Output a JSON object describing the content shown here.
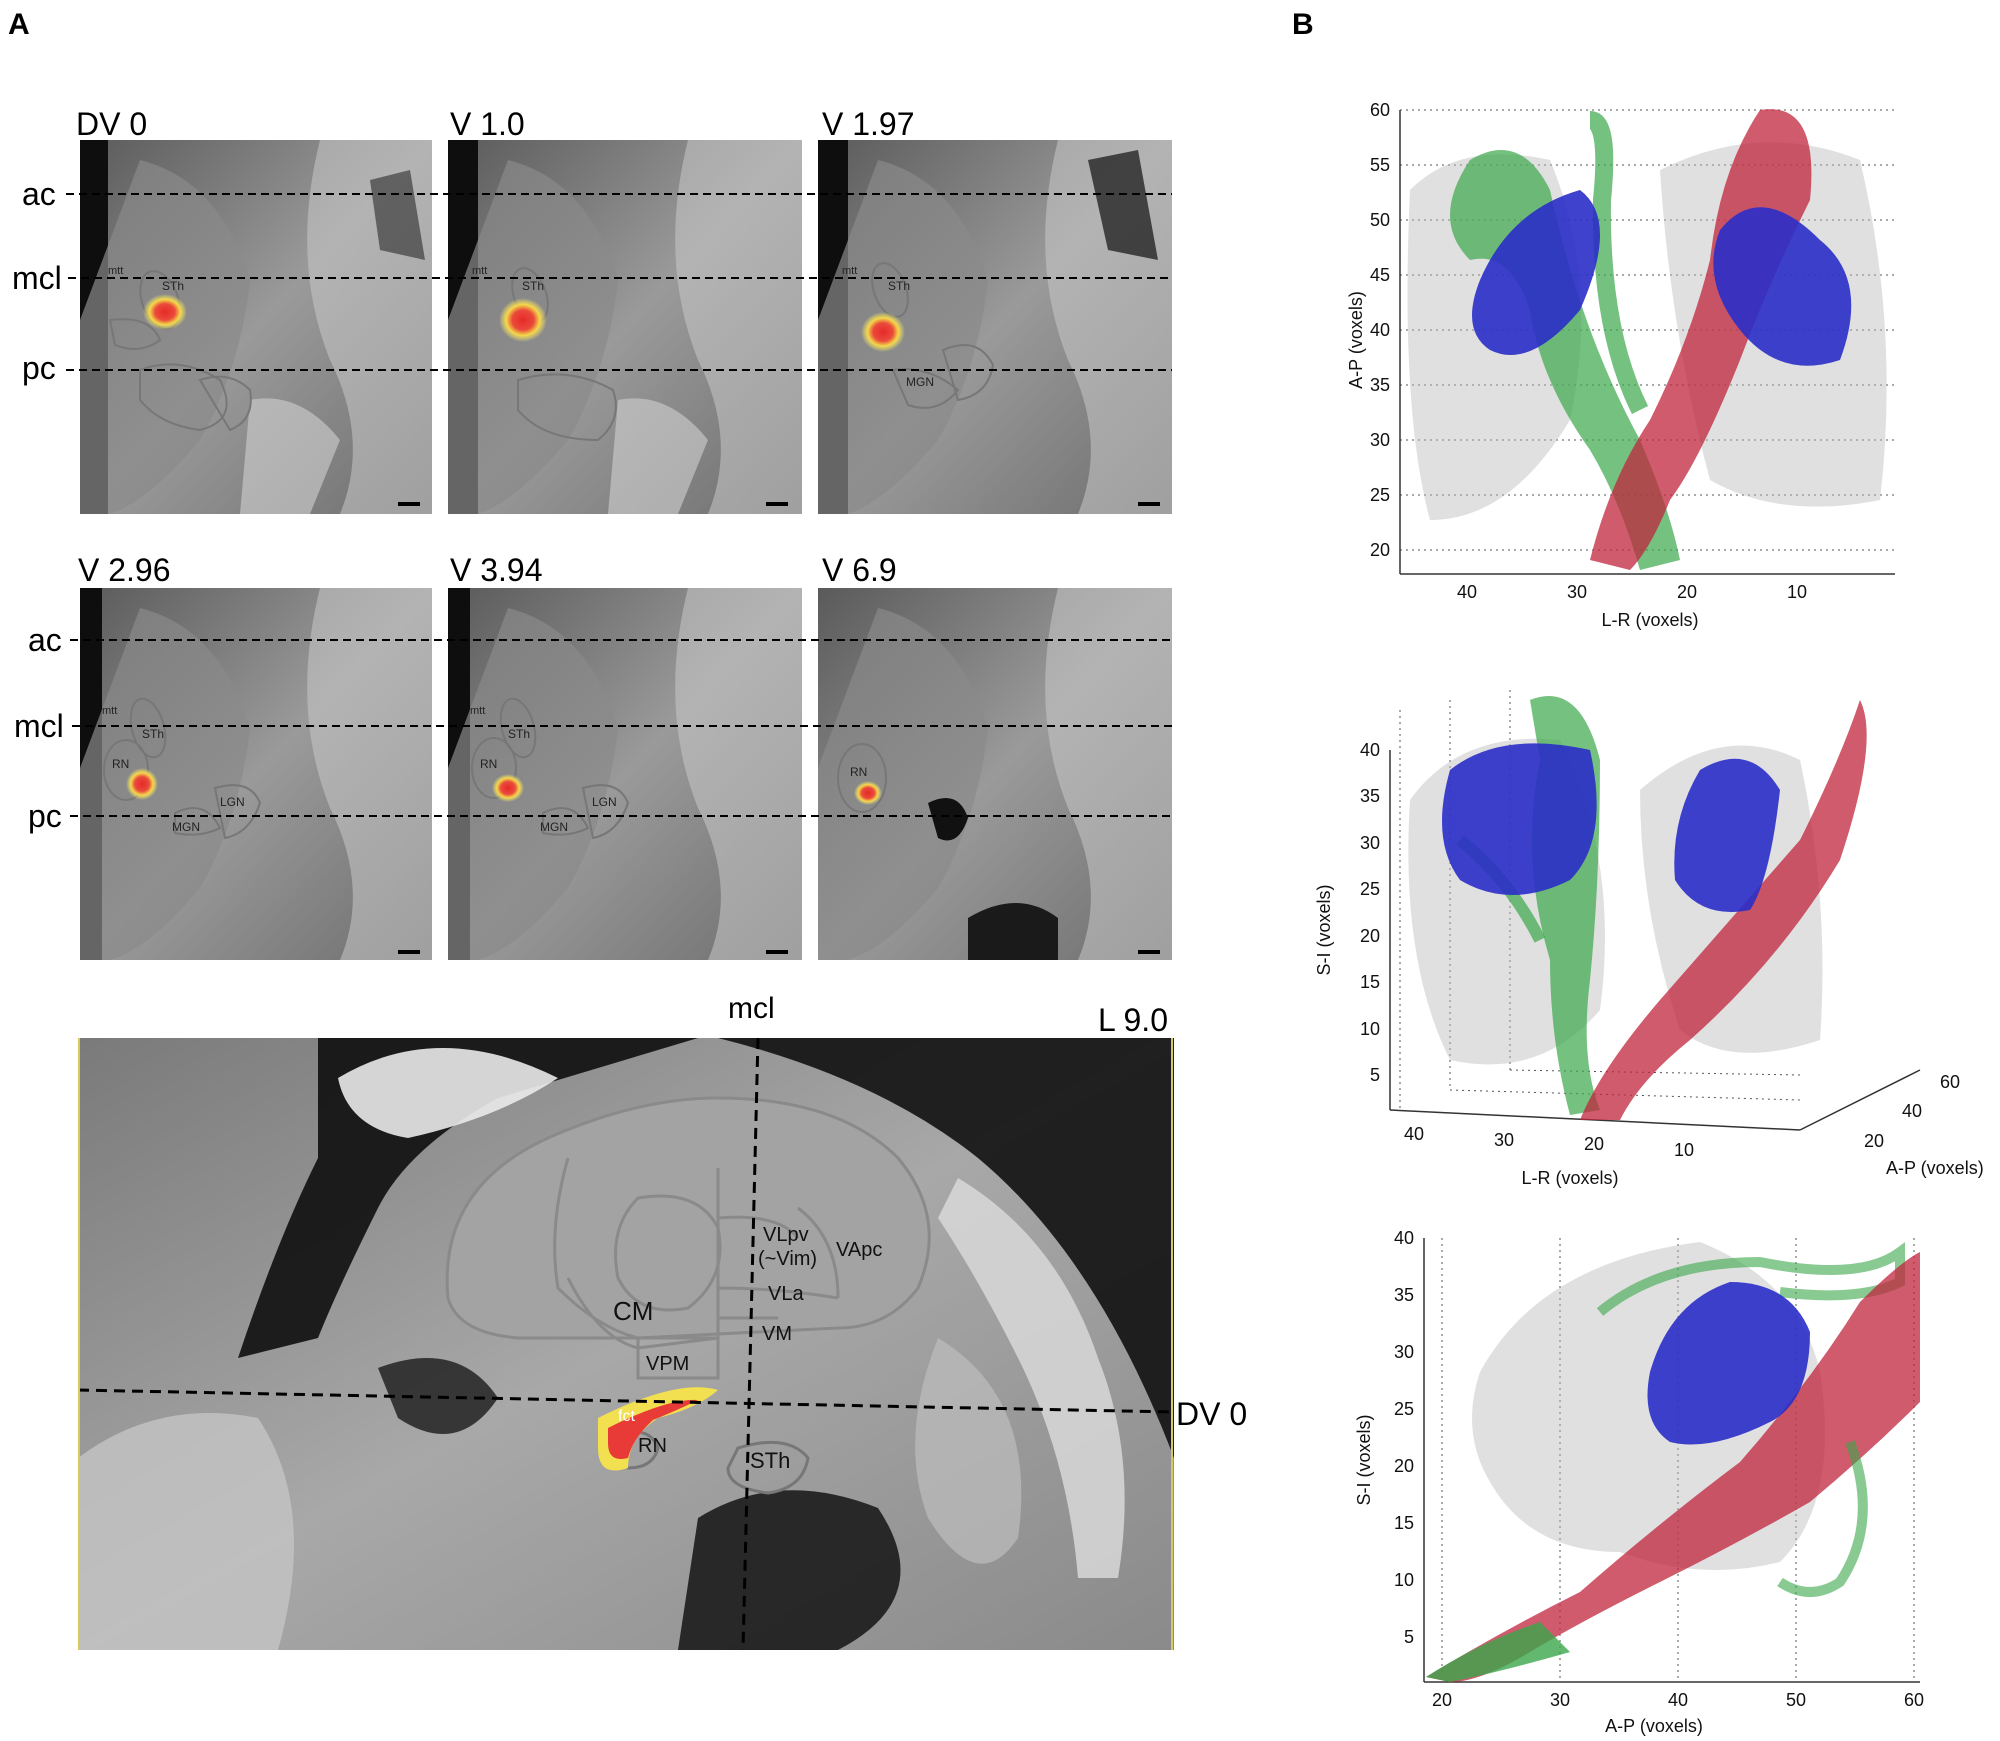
{
  "panel_labels": {
    "a": "A",
    "b": "B"
  },
  "slices": [
    {
      "title": "DV 0",
      "labels": {
        "mtt": "mtt",
        "sth": "STh"
      }
    },
    {
      "title": "V 1.0",
      "labels": {
        "mtt": "mtt",
        "sth": "STh"
      }
    },
    {
      "title": "V 1.97",
      "labels": {
        "mtt": "mtt",
        "sth": "STh",
        "mgn": "MGN"
      }
    },
    {
      "title": "V 2.96",
      "labels": {
        "mtt": "mtt",
        "sth": "STh",
        "rn": "RN",
        "mgn": "MGN",
        "lgn": "LGN"
      }
    },
    {
      "title": "V 3.94",
      "labels": {
        "mtt": "mtt",
        "sth": "STh",
        "rn": "RN",
        "mgn": "MGN",
        "lgn": "LGN"
      }
    },
    {
      "title": "V 6.9",
      "labels": {
        "rn": "RN"
      }
    }
  ],
  "line_labels": {
    "ac": "ac",
    "mcl": "mcl",
    "pc": "pc"
  },
  "sagittal": {
    "mcl": "mcl",
    "level": "L 9.0",
    "dv": "DV 0",
    "nuclei": {
      "vlpv": "VLpv",
      "vim": "(~Vim)",
      "vapc": "VApc",
      "cm": "CM",
      "vla": "VLa",
      "vm": "VM",
      "vpm": "VPM",
      "fct": "fct",
      "rn": "RN",
      "sth": "STh"
    }
  },
  "plots": {
    "top": {
      "ylabel": "A-P (voxels)",
      "xlabel": "L-R (voxels)",
      "yticks": [
        "60",
        "55",
        "50",
        "45",
        "40",
        "35",
        "30",
        "25",
        "20"
      ],
      "xticks": [
        "40",
        "30",
        "20",
        "10"
      ]
    },
    "middle": {
      "ylabel": "S-I (voxels)",
      "xlabel": "L-R (voxels)",
      "zlabel": "A-P (voxels)",
      "yticks": [
        "40",
        "35",
        "30",
        "25",
        "20",
        "15",
        "10",
        "5"
      ],
      "xticks": [
        "40",
        "30",
        "20",
        "10"
      ],
      "zticks": [
        "60",
        "40",
        "20"
      ]
    },
    "bottom": {
      "ylabel": "S-I (voxels)",
      "xlabel": "A-P (voxels)",
      "yticks": [
        "40",
        "35",
        "30",
        "25",
        "20",
        "15",
        "10",
        "5"
      ],
      "xticks": [
        "20",
        "30",
        "40",
        "50",
        "60"
      ]
    }
  },
  "colors": {
    "blue_structure": "#2a2ec8",
    "red_tract": "#c0243c",
    "green_tract": "#3aa64a",
    "hotspot_core": "#e8353a",
    "hotspot_halo": "#f3e040"
  }
}
